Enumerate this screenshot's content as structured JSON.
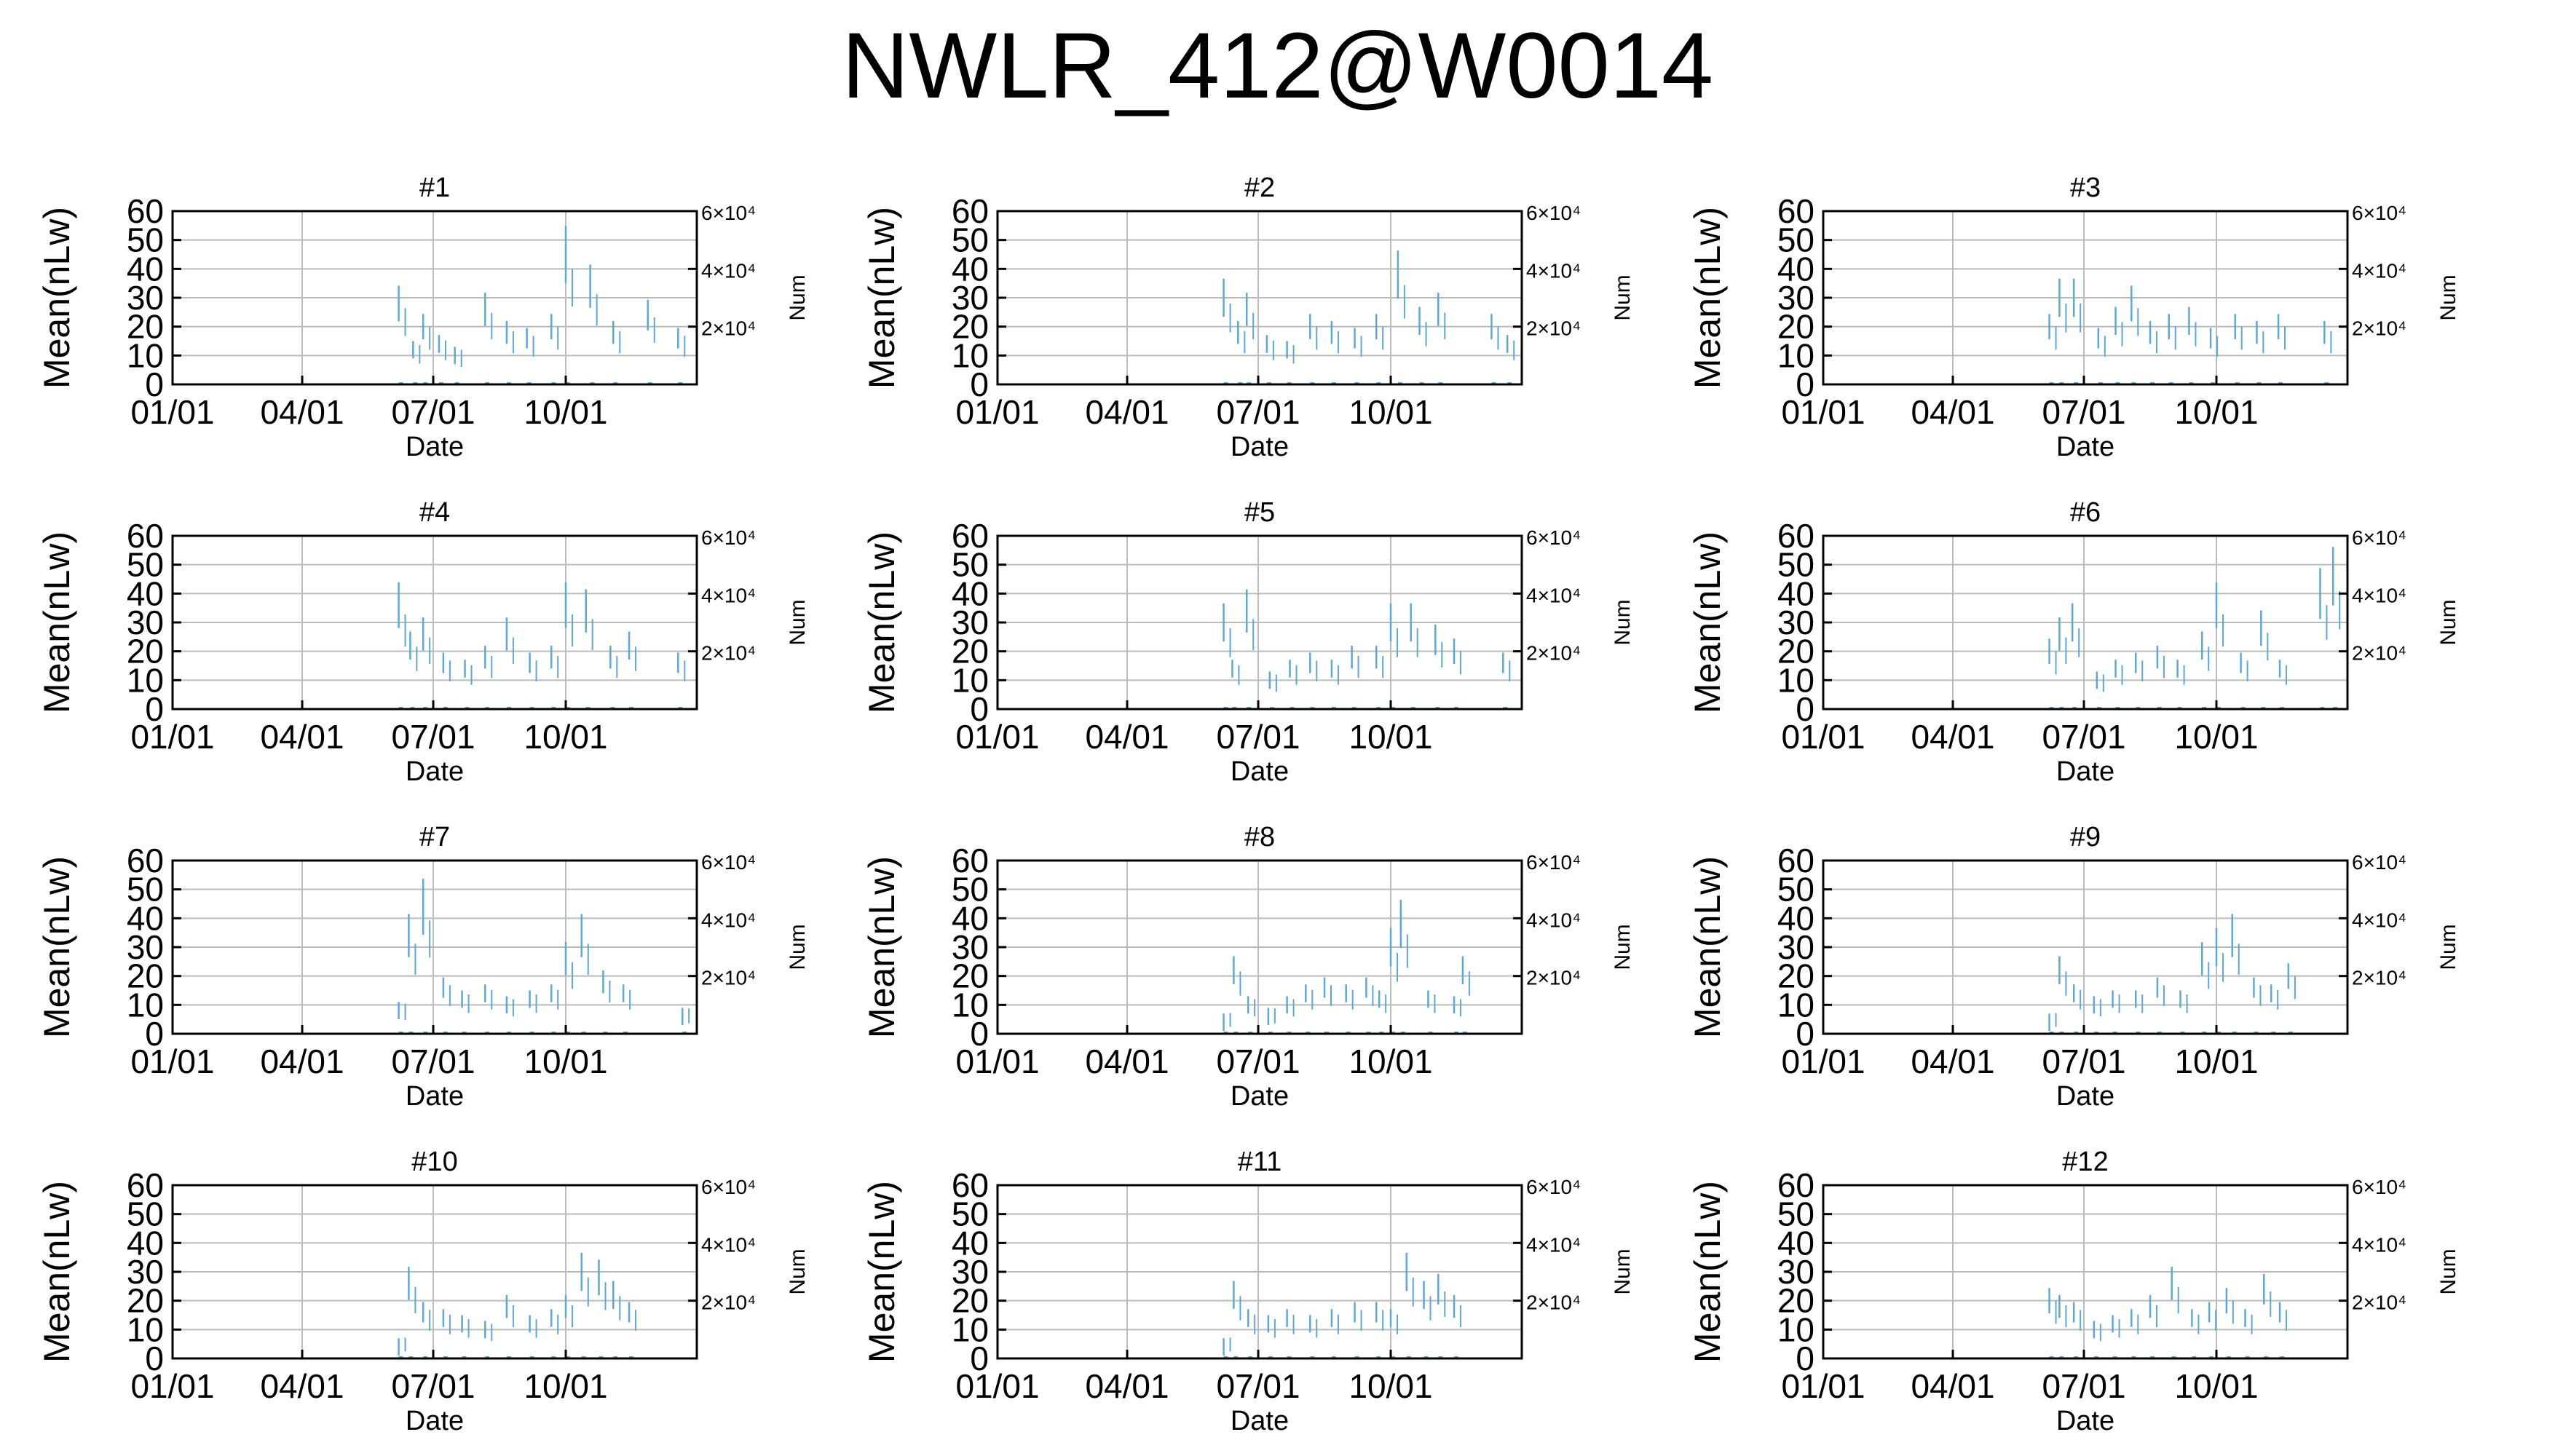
{
  "figure": {
    "title": "NWLR_412@W0014"
  },
  "style": {
    "data_color": "#5aa9d6",
    "axis_color": "#000000",
    "grid_color": "#bbbbbb"
  },
  "chart_data": [
    {
      "type": "line",
      "title": "#1",
      "xlabel": "Date",
      "ylabel": "Mean(nLw)",
      "y2label": "Num",
      "xlim": [
        "01/01",
        "12/31"
      ],
      "ylim": [
        0,
        60
      ],
      "y2lim": [
        0,
        60000
      ],
      "xticks": [
        "01/01",
        "04/01",
        "07/01",
        "10/01"
      ],
      "yticks": [
        0,
        10,
        20,
        30,
        40,
        50,
        60
      ],
      "y2ticks": [
        "2×10⁴",
        "4×10⁴",
        "6×10⁴"
      ],
      "grid": true,
      "series": [
        {
          "x": [
            "06/07",
            "06/17",
            "06/24",
            "07/05",
            "07/16",
            "08/06",
            "08/21",
            "09/04",
            "09/21",
            "10/01",
            "10/18",
            "11/03",
            "11/27",
            "12/18"
          ],
          "y": [
            28,
            12,
            20,
            14,
            10,
            26,
            18,
            16,
            20,
            45,
            34,
            18,
            24,
            16
          ]
        }
      ]
    },
    {
      "type": "line",
      "title": "#2",
      "xlabel": "Date",
      "ylabel": "Mean(nLw)",
      "y2label": "Num",
      "xlim": [
        "01/01",
        "12/31"
      ],
      "ylim": [
        0,
        60
      ],
      "y2lim": [
        0,
        60000
      ],
      "xticks": [
        "01/01",
        "04/01",
        "07/01",
        "10/01"
      ],
      "yticks": [
        0,
        10,
        20,
        30,
        40,
        50,
        60
      ],
      "y2ticks": [
        "2×10⁴",
        "4×10⁴",
        "6×10⁴"
      ],
      "grid": true,
      "series": [
        {
          "x": [
            "06/07",
            "06/17",
            "06/23",
            "07/07",
            "07/21",
            "08/06",
            "08/21",
            "09/06",
            "09/21",
            "10/06",
            "10/21",
            "11/03",
            "12/10",
            "12/21"
          ],
          "y": [
            30,
            18,
            26,
            14,
            12,
            20,
            18,
            16,
            20,
            38,
            22,
            26,
            20,
            14
          ]
        }
      ]
    },
    {
      "type": "line",
      "title": "#3",
      "xlabel": "Date",
      "ylabel": "Mean(nLw)",
      "y2label": "Num",
      "xlim": [
        "01/01",
        "12/31"
      ],
      "ylim": [
        0,
        60
      ],
      "y2lim": [
        0,
        60000
      ],
      "xticks": [
        "01/01",
        "04/01",
        "07/01",
        "10/01"
      ],
      "yticks": [
        0,
        10,
        20,
        30,
        40,
        50,
        60
      ],
      "y2ticks": [
        "2×10⁴",
        "4×10⁴",
        "6×10⁴"
      ],
      "grid": true,
      "series": [
        {
          "x": [
            "06/07",
            "06/14",
            "06/24",
            "07/11",
            "07/23",
            "08/03",
            "08/16",
            "08/29",
            "09/12",
            "09/27",
            "10/14",
            "10/29",
            "11/13",
            "12/15"
          ],
          "y": [
            20,
            30,
            30,
            16,
            22,
            28,
            18,
            20,
            22,
            16,
            20,
            18,
            20,
            18
          ]
        }
      ]
    },
    {
      "type": "line",
      "title": "#4",
      "xlabel": "Date",
      "ylabel": "Mean(nLw)",
      "y2label": "Num",
      "xlim": [
        "01/01",
        "12/31"
      ],
      "ylim": [
        0,
        60
      ],
      "y2lim": [
        0,
        60000
      ],
      "xticks": [
        "01/01",
        "04/01",
        "07/01",
        "10/01"
      ],
      "yticks": [
        0,
        10,
        20,
        30,
        40,
        50,
        60
      ],
      "y2ticks": [
        "2×10⁴",
        "4×10⁴",
        "6×10⁴"
      ],
      "grid": true,
      "series": [
        {
          "x": [
            "06/07",
            "06/15",
            "06/24",
            "07/08",
            "07/23",
            "08/06",
            "08/21",
            "09/06",
            "09/21",
            "10/01",
            "10/15",
            "11/01",
            "11/14",
            "12/18"
          ],
          "y": [
            36,
            22,
            26,
            16,
            14,
            18,
            26,
            16,
            18,
            36,
            34,
            18,
            22,
            16
          ]
        }
      ]
    },
    {
      "type": "line",
      "title": "#5",
      "xlabel": "Date",
      "ylabel": "Mean(nLw)",
      "y2label": "Num",
      "xlim": [
        "01/01",
        "12/31"
      ],
      "ylim": [
        0,
        60
      ],
      "y2lim": [
        0,
        60000
      ],
      "xticks": [
        "01/01",
        "04/01",
        "07/01",
        "10/01"
      ],
      "yticks": [
        0,
        10,
        20,
        30,
        40,
        50,
        60
      ],
      "y2ticks": [
        "2×10⁴",
        "4×10⁴",
        "6×10⁴"
      ],
      "grid": true,
      "series": [
        {
          "x": [
            "06/07",
            "06/13",
            "06/23",
            "07/09",
            "07/23",
            "08/06",
            "08/21",
            "09/04",
            "09/21",
            "10/01",
            "10/15",
            "11/01",
            "11/14",
            "12/18"
          ],
          "y": [
            30,
            14,
            34,
            10,
            14,
            16,
            14,
            18,
            18,
            30,
            30,
            24,
            20,
            16
          ]
        }
      ]
    },
    {
      "type": "line",
      "title": "#6",
      "xlabel": "Date",
      "ylabel": "Mean(nLw)",
      "y2label": "Num",
      "xlim": [
        "01/01",
        "12/31"
      ],
      "ylim": [
        0,
        60
      ],
      "y2lim": [
        0,
        60000
      ],
      "xticks": [
        "01/01",
        "04/01",
        "07/01",
        "10/01"
      ],
      "yticks": [
        0,
        10,
        20,
        30,
        40,
        50,
        60
      ],
      "y2ticks": [
        "2×10⁴",
        "4×10⁴",
        "6×10⁴"
      ],
      "grid": true,
      "series": [
        {
          "x": [
            "06/07",
            "06/14",
            "06/23",
            "07/10",
            "07/23",
            "08/06",
            "08/21",
            "09/04",
            "09/21",
            "10/01",
            "10/18",
            "11/01",
            "11/14",
            "12/12",
            "12/21"
          ],
          "y": [
            20,
            26,
            30,
            10,
            14,
            16,
            18,
            14,
            22,
            36,
            16,
            28,
            14,
            40,
            46
          ]
        }
      ]
    },
    {
      "type": "line",
      "title": "#7",
      "xlabel": "Date",
      "ylabel": "Mean(nLw)",
      "y2label": "Num",
      "xlim": [
        "01/01",
        "12/31"
      ],
      "ylim": [
        0,
        60
      ],
      "y2lim": [
        0,
        60000
      ],
      "xticks": [
        "01/01",
        "04/01",
        "07/01",
        "10/01"
      ],
      "yticks": [
        0,
        10,
        20,
        30,
        40,
        50,
        60
      ],
      "y2ticks": [
        "2×10⁴",
        "4×10⁴",
        "6×10⁴"
      ],
      "grid": true,
      "series": [
        {
          "x": [
            "06/07",
            "06/14",
            "06/24",
            "07/08",
            "07/21",
            "08/06",
            "08/21",
            "09/06",
            "09/21",
            "10/01",
            "10/12",
            "10/27",
            "11/10",
            "12/21"
          ],
          "y": [
            8,
            34,
            44,
            16,
            12,
            14,
            10,
            12,
            14,
            26,
            34,
            18,
            14,
            6
          ]
        }
      ]
    },
    {
      "type": "line",
      "title": "#8",
      "xlabel": "Date",
      "ylabel": "Mean(nLw)",
      "y2label": "Num",
      "xlim": [
        "01/01",
        "12/31"
      ],
      "ylim": [
        0,
        60
      ],
      "y2lim": [
        0,
        60000
      ],
      "xticks": [
        "01/01",
        "04/01",
        "07/01",
        "10/01"
      ],
      "yticks": [
        0,
        10,
        20,
        30,
        40,
        50,
        60
      ],
      "y2ticks": [
        "2×10⁴",
        "4×10⁴",
        "6×10⁴"
      ],
      "grid": true,
      "series": [
        {
          "x": [
            "06/07",
            "06/14",
            "06/24",
            "07/08",
            "07/21",
            "08/03",
            "08/16",
            "08/31",
            "09/14",
            "09/23",
            "10/01",
            "10/08",
            "10/27",
            "11/14",
            "11/20"
          ],
          "y": [
            4,
            22,
            10,
            6,
            10,
            14,
            16,
            14,
            16,
            12,
            30,
            38,
            12,
            10,
            22
          ]
        }
      ]
    },
    {
      "type": "line",
      "title": "#9",
      "xlabel": "Date",
      "ylabel": "Mean(nLw)",
      "y2label": "Num",
      "xlim": [
        "01/01",
        "12/31"
      ],
      "ylim": [
        0,
        60
      ],
      "y2lim": [
        0,
        60000
      ],
      "xticks": [
        "01/01",
        "04/01",
        "07/01",
        "10/01"
      ],
      "yticks": [
        0,
        10,
        20,
        30,
        40,
        50,
        60
      ],
      "y2ticks": [
        "2×10⁴",
        "4×10⁴",
        "6×10⁴"
      ],
      "grid": true,
      "series": [
        {
          "x": [
            "06/07",
            "06/14",
            "06/24",
            "07/08",
            "07/21",
            "08/06",
            "08/21",
            "09/06",
            "09/21",
            "10/01",
            "10/12",
            "10/27",
            "11/08",
            "11/20"
          ],
          "y": [
            4,
            22,
            14,
            10,
            12,
            12,
            16,
            12,
            26,
            30,
            34,
            16,
            14,
            20
          ]
        }
      ]
    },
    {
      "type": "line",
      "title": "#10",
      "xlabel": "Date",
      "ylabel": "Mean(nLw)",
      "y2label": "Num",
      "xlim": [
        "01/01",
        "12/31"
      ],
      "ylim": [
        0,
        60
      ],
      "y2lim": [
        0,
        60000
      ],
      "xticks": [
        "01/01",
        "04/01",
        "07/01",
        "10/01"
      ],
      "yticks": [
        0,
        10,
        20,
        30,
        40,
        50,
        60
      ],
      "y2ticks": [
        "2×10⁴",
        "4×10⁴",
        "6×10⁴"
      ],
      "grid": true,
      "series": [
        {
          "x": [
            "06/07",
            "06/14",
            "06/24",
            "07/08",
            "07/21",
            "08/06",
            "08/21",
            "09/06",
            "09/21",
            "10/01",
            "10/12",
            "10/24",
            "11/03",
            "11/14"
          ],
          "y": [
            4,
            26,
            16,
            14,
            12,
            10,
            18,
            12,
            14,
            18,
            30,
            28,
            22,
            16
          ]
        }
      ]
    },
    {
      "type": "line",
      "title": "#11",
      "xlabel": "Date",
      "ylabel": "Mean(nLw)",
      "y2label": "Num",
      "xlim": [
        "01/01",
        "12/31"
      ],
      "ylim": [
        0,
        60
      ],
      "y2lim": [
        0,
        60000
      ],
      "xticks": [
        "01/01",
        "04/01",
        "07/01",
        "10/01"
      ],
      "yticks": [
        0,
        10,
        20,
        30,
        40,
        50,
        60
      ],
      "y2ticks": [
        "2×10⁴",
        "4×10⁴",
        "6×10⁴"
      ],
      "grid": true,
      "series": [
        {
          "x": [
            "06/07",
            "06/14",
            "06/24",
            "07/08",
            "07/21",
            "08/06",
            "08/21",
            "09/06",
            "09/21",
            "10/01",
            "10/12",
            "10/24",
            "11/03",
            "11/14"
          ],
          "y": [
            4,
            22,
            14,
            12,
            14,
            12,
            14,
            16,
            16,
            14,
            30,
            22,
            24,
            18
          ]
        }
      ]
    },
    {
      "type": "line",
      "title": "#12",
      "xlabel": "Date",
      "ylabel": "Mean(nLw)",
      "y2label": "Num",
      "xlim": [
        "01/01",
        "12/31"
      ],
      "ylim": [
        0,
        60
      ],
      "y2lim": [
        0,
        60000
      ],
      "xticks": [
        "01/01",
        "04/01",
        "07/01",
        "10/01"
      ],
      "yticks": [
        0,
        10,
        20,
        30,
        40,
        50,
        60
      ],
      "y2ticks": [
        "2×10⁴",
        "4×10⁴",
        "6×10⁴"
      ],
      "grid": true,
      "series": [
        {
          "x": [
            "06/07",
            "06/14",
            "06/24",
            "07/08",
            "07/21",
            "08/03",
            "08/16",
            "08/31",
            "09/14",
            "09/26",
            "10/08",
            "10/21",
            "11/03",
            "11/14"
          ],
          "y": [
            20,
            18,
            16,
            10,
            12,
            14,
            18,
            26,
            14,
            16,
            20,
            14,
            24,
            16
          ]
        }
      ]
    }
  ]
}
